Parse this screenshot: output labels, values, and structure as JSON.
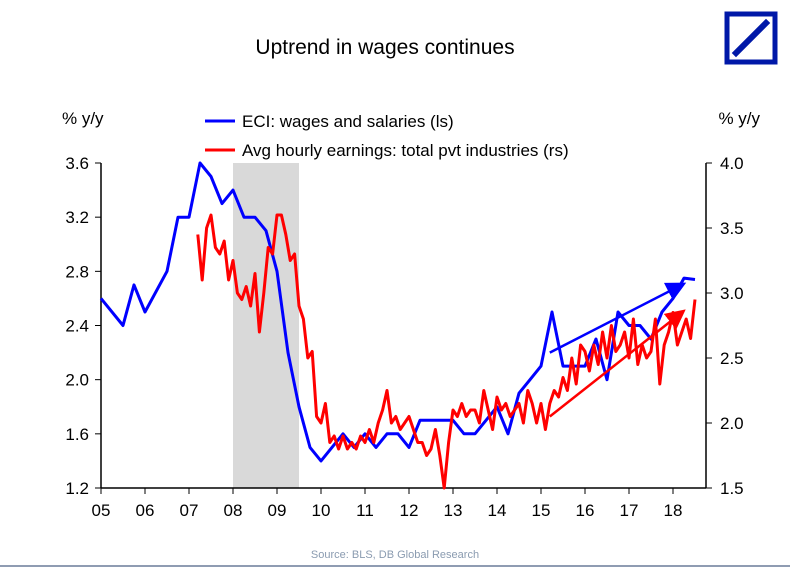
{
  "chart_data": {
    "type": "line",
    "title": "Uptrend in wages continues",
    "ylabel_left": "% y/y",
    "ylabel_right": "% y/y",
    "xlabel": "",
    "source": "Source: BLS, DB Global Research",
    "x_tick_labels": [
      "05",
      "06",
      "07",
      "08",
      "09",
      "10",
      "11",
      "12",
      "13",
      "14",
      "15",
      "16",
      "17",
      "18"
    ],
    "x_tick_years": [
      2005,
      2006,
      2007,
      2008,
      2009,
      2010,
      2011,
      2012,
      2013,
      2014,
      2015,
      2016,
      2017,
      2018
    ],
    "xlim": [
      2005.0,
      2018.75
    ],
    "ylim_left": [
      1.2,
      3.6
    ],
    "ylim_right": [
      1.5,
      4.0
    ],
    "yticks_left": [
      "1.2",
      "1.6",
      "2.0",
      "2.4",
      "2.8",
      "3.2",
      "3.6"
    ],
    "yticks_right": [
      "1.5",
      "2.0",
      "2.5",
      "3.0",
      "3.5",
      "4.0"
    ],
    "recession_shade": {
      "start": 2008.0,
      "end": 2009.5,
      "color": "#d9d9d9"
    },
    "colors": {
      "eci": "#0000ff",
      "ahe": "#ff0000",
      "axis": "#000000",
      "logo_blue": "#0018a8",
      "source": "#8a9bb0"
    },
    "logo": "deutsche-bank-logo",
    "series": [
      {
        "name": "ECI: wages and salaries (ls)",
        "axis": "left",
        "color": "#0000ff",
        "points": [
          [
            2005.0,
            2.6
          ],
          [
            2005.5,
            2.4
          ],
          [
            2005.75,
            2.7
          ],
          [
            2006.0,
            2.5
          ],
          [
            2006.5,
            2.8
          ],
          [
            2006.75,
            3.2
          ],
          [
            2007.0,
            3.2
          ],
          [
            2007.25,
            3.6
          ],
          [
            2007.5,
            3.5
          ],
          [
            2007.75,
            3.3
          ],
          [
            2008.0,
            3.4
          ],
          [
            2008.25,
            3.2
          ],
          [
            2008.5,
            3.2
          ],
          [
            2008.75,
            3.1
          ],
          [
            2009.0,
            2.8
          ],
          [
            2009.25,
            2.2
          ],
          [
            2009.5,
            1.8
          ],
          [
            2009.75,
            1.5
          ],
          [
            2010.0,
            1.4
          ],
          [
            2010.5,
            1.6
          ],
          [
            2010.75,
            1.5
          ],
          [
            2011.0,
            1.6
          ],
          [
            2011.25,
            1.5
          ],
          [
            2011.5,
            1.6
          ],
          [
            2011.75,
            1.6
          ],
          [
            2012.0,
            1.5
          ],
          [
            2012.25,
            1.7
          ],
          [
            2012.5,
            1.7
          ],
          [
            2012.75,
            1.7
          ],
          [
            2013.0,
            1.7
          ],
          [
            2013.25,
            1.6
          ],
          [
            2013.5,
            1.6
          ],
          [
            2013.75,
            1.7
          ],
          [
            2014.0,
            1.8
          ],
          [
            2014.25,
            1.6
          ],
          [
            2014.5,
            1.9
          ],
          [
            2014.75,
            2.0
          ],
          [
            2015.0,
            2.1
          ],
          [
            2015.25,
            2.5
          ],
          [
            2015.5,
            2.1
          ],
          [
            2015.75,
            2.1
          ],
          [
            2016.0,
            2.1
          ],
          [
            2016.25,
            2.3
          ],
          [
            2016.5,
            2.0
          ],
          [
            2016.75,
            2.5
          ],
          [
            2017.0,
            2.4
          ],
          [
            2017.25,
            2.4
          ],
          [
            2017.5,
            2.3
          ],
          [
            2017.75,
            2.5
          ],
          [
            2018.0,
            2.6
          ],
          [
            2018.25,
            2.75
          ],
          [
            2018.5,
            2.74
          ]
        ]
      },
      {
        "name": "Avg hourly earnings: total pvt industries (rs)",
        "axis": "right",
        "color": "#ff0000",
        "points": [
          [
            2007.2,
            3.45
          ],
          [
            2007.3,
            3.1
          ],
          [
            2007.4,
            3.5
          ],
          [
            2007.5,
            3.6
          ],
          [
            2007.6,
            3.35
          ],
          [
            2007.7,
            3.3
          ],
          [
            2007.8,
            3.4
          ],
          [
            2007.9,
            3.1
          ],
          [
            2008.0,
            3.25
          ],
          [
            2008.1,
            3.0
          ],
          [
            2008.2,
            2.95
          ],
          [
            2008.3,
            3.05
          ],
          [
            2008.4,
            2.9
          ],
          [
            2008.5,
            3.15
          ],
          [
            2008.6,
            2.7
          ],
          [
            2008.7,
            3.0
          ],
          [
            2008.8,
            3.35
          ],
          [
            2008.9,
            3.3
          ],
          [
            2009.0,
            3.6
          ],
          [
            2009.1,
            3.6
          ],
          [
            2009.2,
            3.45
          ],
          [
            2009.3,
            3.25
          ],
          [
            2009.4,
            3.3
          ],
          [
            2009.5,
            2.9
          ],
          [
            2009.6,
            2.8
          ],
          [
            2009.7,
            2.5
          ],
          [
            2009.8,
            2.55
          ],
          [
            2009.9,
            2.05
          ],
          [
            2010.0,
            2.0
          ],
          [
            2010.1,
            2.15
          ],
          [
            2010.2,
            1.85
          ],
          [
            2010.3,
            1.9
          ],
          [
            2010.4,
            1.8
          ],
          [
            2010.5,
            1.9
          ],
          [
            2010.6,
            1.8
          ],
          [
            2010.7,
            1.85
          ],
          [
            2010.8,
            1.8
          ],
          [
            2010.9,
            1.9
          ],
          [
            2011.0,
            1.85
          ],
          [
            2011.1,
            1.95
          ],
          [
            2011.2,
            1.85
          ],
          [
            2011.3,
            2.0
          ],
          [
            2011.4,
            2.1
          ],
          [
            2011.5,
            2.25
          ],
          [
            2011.6,
            2.0
          ],
          [
            2011.7,
            2.05
          ],
          [
            2011.8,
            1.95
          ],
          [
            2011.9,
            2.0
          ],
          [
            2012.0,
            2.05
          ],
          [
            2012.1,
            1.95
          ],
          [
            2012.2,
            1.85
          ],
          [
            2012.3,
            1.85
          ],
          [
            2012.4,
            1.75
          ],
          [
            2012.5,
            1.8
          ],
          [
            2012.6,
            1.95
          ],
          [
            2012.7,
            1.75
          ],
          [
            2012.8,
            1.5
          ],
          [
            2012.9,
            1.85
          ],
          [
            2013.0,
            2.1
          ],
          [
            2013.1,
            2.05
          ],
          [
            2013.2,
            2.15
          ],
          [
            2013.3,
            2.05
          ],
          [
            2013.4,
            2.1
          ],
          [
            2013.5,
            2.1
          ],
          [
            2013.6,
            2.0
          ],
          [
            2013.7,
            2.25
          ],
          [
            2013.8,
            2.1
          ],
          [
            2013.9,
            1.95
          ],
          [
            2014.0,
            2.2
          ],
          [
            2014.1,
            2.1
          ],
          [
            2014.2,
            2.15
          ],
          [
            2014.3,
            2.05
          ],
          [
            2014.4,
            2.1
          ],
          [
            2014.5,
            2.15
          ],
          [
            2014.6,
            2.0
          ],
          [
            2014.7,
            2.25
          ],
          [
            2014.8,
            2.15
          ],
          [
            2014.9,
            2.0
          ],
          [
            2015.0,
            2.15
          ],
          [
            2015.1,
            1.95
          ],
          [
            2015.2,
            2.15
          ],
          [
            2015.3,
            2.25
          ],
          [
            2015.4,
            2.2
          ],
          [
            2015.5,
            2.35
          ],
          [
            2015.6,
            2.25
          ],
          [
            2015.7,
            2.5
          ],
          [
            2015.8,
            2.3
          ],
          [
            2015.9,
            2.6
          ],
          [
            2016.0,
            2.55
          ],
          [
            2016.1,
            2.4
          ],
          [
            2016.2,
            2.6
          ],
          [
            2016.3,
            2.45
          ],
          [
            2016.4,
            2.7
          ],
          [
            2016.5,
            2.5
          ],
          [
            2016.6,
            2.75
          ],
          [
            2016.7,
            2.55
          ],
          [
            2016.8,
            2.6
          ],
          [
            2016.9,
            2.7
          ],
          [
            2017.0,
            2.5
          ],
          [
            2017.1,
            2.8
          ],
          [
            2017.2,
            2.45
          ],
          [
            2017.3,
            2.6
          ],
          [
            2017.4,
            2.5
          ],
          [
            2017.5,
            2.55
          ],
          [
            2017.6,
            2.8
          ],
          [
            2017.7,
            2.3
          ],
          [
            2017.8,
            2.6
          ],
          [
            2017.9,
            2.7
          ],
          [
            2018.0,
            2.85
          ],
          [
            2018.1,
            2.6
          ],
          [
            2018.2,
            2.7
          ],
          [
            2018.3,
            2.8
          ],
          [
            2018.4,
            2.65
          ],
          [
            2018.5,
            2.95
          ]
        ]
      }
    ],
    "trend_arrows": [
      {
        "name": "eci-trend-arrow",
        "axis": "left",
        "color": "#0000ff",
        "from": [
          2015.2,
          2.2
        ],
        "to": [
          2018.2,
          2.7
        ]
      },
      {
        "name": "ahe-trend-arrow",
        "axis": "right",
        "color": "#ff0000",
        "from": [
          2015.2,
          2.05
        ],
        "to": [
          2018.2,
          2.85
        ]
      }
    ]
  }
}
